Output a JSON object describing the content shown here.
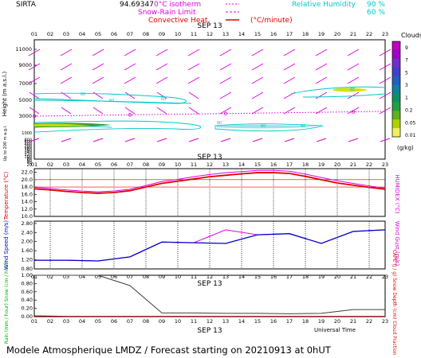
{
  "header": {
    "site": "SIRTA",
    "coords": "94.69347",
    "legend": {
      "isotherm": "0°C isotherm",
      "snow_rain": "Snow-Rain Limit",
      "convective": "Convective Heat.",
      "convective_unit": "(°C/minute)",
      "rh_label": "Relative Humidity",
      "rh_90": "90 %",
      "rh_60": "60 %"
    }
  },
  "colors": {
    "cyan": "#00c8c8",
    "magenta": "#e000e0",
    "red": "#e00000",
    "blue": "#0000c8",
    "green": "#00b000",
    "dark": "#202020"
  },
  "footer": {
    "text": "Modele Atmospherique LMDZ / Forecast starting on 20210913 at 0hUT",
    "universal_time": "Universal Time"
  },
  "chart_data": [
    {
      "type": "heatmap",
      "title": "SEP 13",
      "hours": [
        "01",
        "02",
        "03",
        "04",
        "05",
        "06",
        "07",
        "08",
        "09",
        "10",
        "11",
        "12",
        "13",
        "14",
        "15",
        "16",
        "17",
        "18",
        "19",
        "20",
        "21",
        "22",
        "23"
      ],
      "ylabel": "Height (m a.s.l.)",
      "ylabel_low": "Up to 200 m a.g.l.",
      "yticks_upper": [
        "11000",
        "9000",
        "7000",
        "5000",
        "3000"
      ],
      "yticks_lower": [
        "1000",
        "800",
        "600",
        "400",
        "200",
        "180",
        "160",
        "140",
        "120",
        "100",
        "80",
        "60",
        "40",
        "20"
      ],
      "colorbar": {
        "title": "Clouds",
        "unit": "(g/kg)",
        "ticks": [
          "9",
          "7",
          "5",
          "3",
          "1",
          "0.2",
          "0.05",
          "0.01"
        ]
      },
      "contour_labels": [
        "60",
        "60",
        "60",
        "90",
        "60",
        "60",
        "60"
      ]
    },
    {
      "type": "line",
      "title": "SEP 13",
      "ylabel": "Temperature (°C)",
      "ylabel_right": "HUMIDEX (°C)",
      "yticks": [
        "10.0",
        "12.0",
        "14.0",
        "16.0",
        "18.0",
        "20.0",
        "22.0"
      ],
      "ylim": [
        10,
        23
      ],
      "series": [
        {
          "values": [
            17.5,
            17.2,
            16.8,
            16.5,
            16.3,
            16.5,
            17.0,
            18.0,
            19.0,
            19.6,
            20.2,
            20.8,
            21.2,
            21.6,
            21.9,
            21.9,
            21.7,
            20.9,
            20.0,
            19.1,
            18.5,
            17.9,
            17.4
          ]
        },
        {
          "values": [
            17.9,
            17.6,
            17.2,
            16.9,
            16.7,
            16.9,
            17.4,
            18.4,
            19.5,
            20.1,
            20.8,
            21.4,
            21.9,
            22.2,
            22.5,
            22.5,
            22.3,
            21.5,
            20.6,
            19.7,
            19.0,
            18.3,
            17.7
          ]
        }
      ]
    },
    {
      "type": "line",
      "ylabel": "Wind Speed (m/s)",
      "ylabel_right": "Wind Gust (m/s)",
      "yticks": [
        "0.80",
        "1.20",
        "1.60",
        "2.00",
        "2.40",
        "2.80"
      ],
      "ylim": [
        0.8,
        2.9
      ],
      "x": [
        "01",
        "03",
        "05",
        "07",
        "09",
        "11",
        "13",
        "15",
        "17",
        "19",
        "21",
        "23"
      ],
      "series": [
        {
          "values": [
            1.18,
            1.18,
            1.15,
            1.33,
            1.98,
            1.95,
            1.92,
            2.3,
            2.35,
            1.92,
            2.45,
            2.52
          ]
        },
        {
          "values": [
            1.18,
            1.18,
            1.15,
            1.33,
            1.98,
            1.95,
            2.52,
            2.3,
            2.35,
            1.92,
            2.45,
            2.52
          ]
        }
      ]
    },
    {
      "type": "line",
      "title": "SEP 13",
      "xlabel": "Universal Time",
      "ylabel_left": "Rain (mm / hour) Snow (cm / hour)",
      "ylabel_right": "CAPE (J / g) Snow Depth (cm) Cloud Fraction",
      "yticks": [
        "0.00",
        "0.20",
        "0.40",
        "0.60",
        "0.80",
        "1.00"
      ],
      "ylim": [
        0,
        1.0
      ],
      "x": [
        "01",
        "03",
        "05",
        "07",
        "09",
        "11",
        "13",
        "15",
        "17",
        "19",
        "21",
        "23"
      ],
      "series": [
        {
          "values": [
            1.0,
            1.0,
            1.0,
            0.75,
            0.09,
            0.09,
            0.08,
            0.08,
            0.07,
            0.08,
            0.17,
            0.17
          ]
        },
        {
          "values": [
            0.02,
            0.01,
            0.01,
            0.01,
            0.01,
            0.01,
            0.01,
            0.01,
            0.01,
            0.01,
            0.01,
            0.01
          ]
        }
      ]
    }
  ]
}
